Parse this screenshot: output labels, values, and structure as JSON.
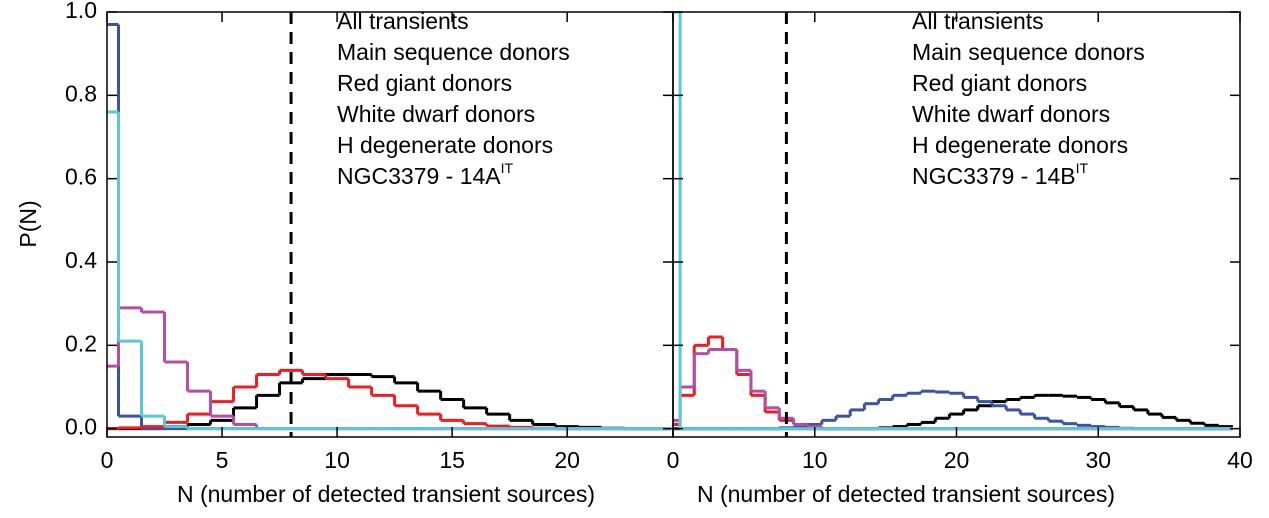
{
  "chart_data": [
    {
      "type": "step-histogram",
      "xlabel": "N (number of detected transient sources)",
      "ylabel": "P(N)",
      "xlim": [
        0,
        24.6
      ],
      "ylim": [
        -0.02,
        1.0
      ],
      "xticks": [
        0,
        5,
        10,
        15,
        20
      ],
      "yticks": [
        {
          "value": 0.0,
          "label": "0.0"
        },
        0.2,
        0.4,
        0.6,
        0.8,
        {
          "value": 1.0,
          "label": "1.0"
        }
      ],
      "ytick_labels": true,
      "vline": 8,
      "annotation": {
        "text": "NGC3379 - 14A",
        "superscript": "IT"
      },
      "bins": [
        -0.5,
        0.5,
        1.5,
        2.5,
        3.5,
        4.5,
        5.5,
        6.5,
        7.5,
        8.5,
        9.5,
        10.5,
        11.5,
        12.5,
        13.5,
        14.5,
        15.5,
        16.5,
        17.5,
        18.5,
        19.5,
        20.5,
        21.5,
        22.5,
        23.5,
        24.5
      ],
      "series": [
        {
          "name": "All transients",
          "color": "#000000",
          "values": [
            0,
            0,
            0,
            0.005,
            0.01,
            0.02,
            0.05,
            0.08,
            0.11,
            0.12,
            0.13,
            0.13,
            0.125,
            0.11,
            0.09,
            0.07,
            0.05,
            0.035,
            0.02,
            0.01,
            0.005,
            0.003,
            0.001,
            0,
            0
          ]
        },
        {
          "name": "Main sequence donors",
          "color": "#3a53a4",
          "values": [
            0.97,
            0.03,
            0,
            0,
            0,
            0,
            0,
            0,
            0,
            0,
            0,
            0,
            0,
            0,
            0,
            0,
            0,
            0,
            0,
            0,
            0,
            0,
            0,
            0,
            0
          ]
        },
        {
          "name": "Red giant donors",
          "color": "#ee1c24",
          "values": [
            0,
            0.002,
            0.005,
            0.015,
            0.035,
            0.065,
            0.1,
            0.13,
            0.14,
            0.13,
            0.12,
            0.1,
            0.08,
            0.055,
            0.035,
            0.02,
            0.012,
            0.006,
            0.003,
            0.001,
            0,
            0,
            0,
            0,
            0
          ]
        },
        {
          "name": "White dwarf donors",
          "color": "#b44ea4",
          "values": [
            0.15,
            0.29,
            0.28,
            0.16,
            0.09,
            0.03,
            0.01,
            0,
            0,
            0,
            0,
            0,
            0,
            0,
            0,
            0,
            0,
            0,
            0,
            0,
            0,
            0,
            0,
            0,
            0
          ]
        },
        {
          "name": "H degenerate donors",
          "color": "#5bc8d8",
          "values": [
            0.76,
            0.21,
            0.03,
            0.005,
            0,
            0,
            0,
            0,
            0,
            0,
            0,
            0,
            0,
            0,
            0,
            0,
            0,
            0,
            0,
            0,
            0,
            0,
            0,
            0,
            0
          ]
        }
      ]
    },
    {
      "type": "step-histogram",
      "xlabel": "N (number of detected transient sources)",
      "xlim": [
        0,
        40
      ],
      "ylim": [
        -0.02,
        1.0
      ],
      "xticks": [
        0,
        10,
        20,
        30,
        40
      ],
      "yticks": [
        0,
        0.2,
        0.4,
        0.6,
        0.8,
        1
      ],
      "ytick_labels": false,
      "vline": 8,
      "annotation": {
        "text": "NGC3379 - 14B",
        "superscript": "IT"
      },
      "bins": [
        -0.5,
        0.5,
        1.5,
        2.5,
        3.5,
        4.5,
        5.5,
        6.5,
        7.5,
        8.5,
        9.5,
        10.5,
        11.5,
        12.5,
        13.5,
        14.5,
        15.5,
        16.5,
        17.5,
        18.5,
        19.5,
        20.5,
        21.5,
        22.5,
        23.5,
        24.5,
        25.5,
        26.5,
        27.5,
        28.5,
        29.5,
        30.5,
        31.5,
        32.5,
        33.5,
        34.5,
        35.5,
        36.5,
        37.5,
        38.5,
        39.5
      ],
      "series": [
        {
          "name": "All transients",
          "color": "#000000",
          "values": [
            0,
            0,
            0,
            0,
            0,
            0,
            0,
            0,
            0,
            0,
            0,
            0,
            0,
            0,
            0,
            0.002,
            0.005,
            0.01,
            0.015,
            0.025,
            0.035,
            0.045,
            0.055,
            0.065,
            0.07,
            0.075,
            0.08,
            0.08,
            0.078,
            0.075,
            0.07,
            0.062,
            0.053,
            0.045,
            0.035,
            0.027,
            0.02,
            0.013,
            0.008,
            0.005
          ]
        },
        {
          "name": "Main sequence donors",
          "color": "#3a53a4",
          "values": [
            0,
            0,
            0,
            0,
            0,
            0,
            0,
            0,
            0.002,
            0.005,
            0.01,
            0.02,
            0.03,
            0.045,
            0.06,
            0.07,
            0.08,
            0.085,
            0.09,
            0.088,
            0.085,
            0.075,
            0.065,
            0.055,
            0.045,
            0.035,
            0.025,
            0.018,
            0.012,
            0.008,
            0.005,
            0.003,
            0.001,
            0,
            0,
            0,
            0,
            0,
            0,
            0
          ]
        },
        {
          "name": "Red giant donors",
          "color": "#ee1c24",
          "values": [
            0.01,
            0.08,
            0.2,
            0.22,
            0.19,
            0.13,
            0.08,
            0.04,
            0.02,
            0.01,
            0.004,
            0,
            0,
            0,
            0,
            0,
            0,
            0,
            0,
            0,
            0,
            0,
            0,
            0,
            0,
            0,
            0,
            0,
            0,
            0,
            0,
            0,
            0,
            0,
            0,
            0,
            0,
            0,
            0,
            0
          ]
        },
        {
          "name": "White dwarf donors",
          "color": "#b44ea4",
          "values": [
            0.02,
            0.1,
            0.18,
            0.19,
            0.19,
            0.14,
            0.09,
            0.05,
            0.025,
            0.01,
            0.005,
            0,
            0,
            0,
            0,
            0,
            0,
            0,
            0,
            0,
            0,
            0,
            0,
            0,
            0,
            0,
            0,
            0,
            0,
            0,
            0,
            0,
            0,
            0,
            0,
            0,
            0,
            0,
            0,
            0
          ]
        },
        {
          "name": "H degenerate donors",
          "color": "#5bc8d8",
          "values": [
            1.0,
            0,
            0,
            0,
            0,
            0,
            0,
            0,
            0,
            0,
            0,
            0,
            0,
            0,
            0,
            0,
            0,
            0,
            0,
            0,
            0,
            0,
            0,
            0,
            0,
            0,
            0,
            0,
            0,
            0,
            0,
            0,
            0,
            0,
            0,
            0,
            0,
            0,
            0,
            0
          ]
        }
      ]
    }
  ]
}
